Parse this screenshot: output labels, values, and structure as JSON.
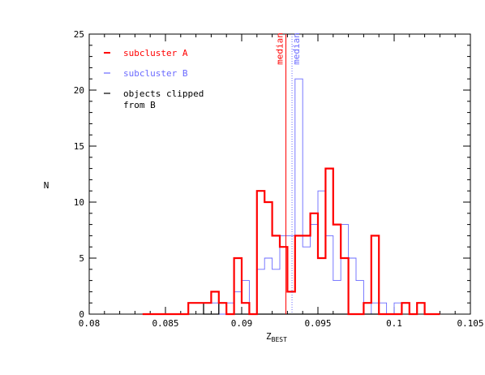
{
  "chart_data": {
    "type": "histogram",
    "xlabel": "Z",
    "xlabel_subscript": "BEST",
    "ylabel": "N",
    "xlim": [
      0.08,
      0.105
    ],
    "ylim": [
      0,
      25
    ],
    "x_ticks": [
      0.08,
      0.085,
      0.09,
      0.095,
      0.1,
      0.105
    ],
    "x_tick_labels": [
      "0.08",
      "0.085",
      "0.09",
      "0.095",
      "0.1",
      "0.105"
    ],
    "y_ticks": [
      0,
      5,
      10,
      15,
      20,
      25
    ],
    "y_tick_labels": [
      "0",
      "5",
      "10",
      "15",
      "20",
      "25"
    ],
    "bin_width": 0.0005,
    "series": [
      {
        "name": "subcluster A",
        "color": "#ff0000",
        "style": "thick-step",
        "x_start": 0.0835,
        "values": [
          0,
          0,
          0,
          0,
          0,
          0,
          1,
          1,
          1,
          2,
          1,
          0,
          5,
          1,
          0,
          11,
          10,
          7,
          6,
          2,
          7,
          7,
          9,
          5,
          13,
          8,
          5,
          0,
          0,
          1,
          7,
          0,
          0,
          0,
          1,
          0,
          1,
          0,
          0
        ]
      },
      {
        "name": "subcluster B",
        "color": "#6a6aff",
        "style": "thin-step",
        "x_start": 0.0835,
        "values": [
          0,
          0,
          0,
          0,
          0,
          0,
          1,
          1,
          1,
          1,
          0,
          1,
          2,
          3,
          0,
          4,
          5,
          4,
          7,
          7,
          21,
          6,
          8,
          11,
          7,
          3,
          8,
          5,
          3,
          0,
          1,
          1,
          0,
          1,
          1,
          0,
          1,
          0,
          0
        ]
      },
      {
        "name": "objects clipped from B",
        "color": "#000000",
        "style": "step",
        "x_start": 0.0835,
        "values": [
          0,
          0,
          0,
          0,
          0,
          0,
          1,
          1,
          0,
          0,
          1,
          0,
          0,
          0,
          0,
          0,
          0,
          0,
          0,
          0,
          0,
          0,
          0,
          0,
          0,
          0,
          0,
          0,
          0,
          0,
          0,
          0,
          0,
          0,
          1,
          0,
          1,
          0,
          0
        ]
      }
    ],
    "medians": [
      {
        "label": "median",
        "x": 0.0929,
        "color": "#ff0000",
        "style": "solid"
      },
      {
        "label": "median",
        "x": 0.0933,
        "color": "#6a6aff",
        "style": "dotted"
      }
    ],
    "legend": {
      "placement": "top-left",
      "entries": [
        {
          "label": "subcluster A",
          "color": "#ff0000"
        },
        {
          "label": "subcluster B",
          "color": "#6a6aff"
        },
        {
          "label_lines": [
            "objects clipped",
            "from B"
          ],
          "color": "#000000"
        }
      ]
    }
  }
}
